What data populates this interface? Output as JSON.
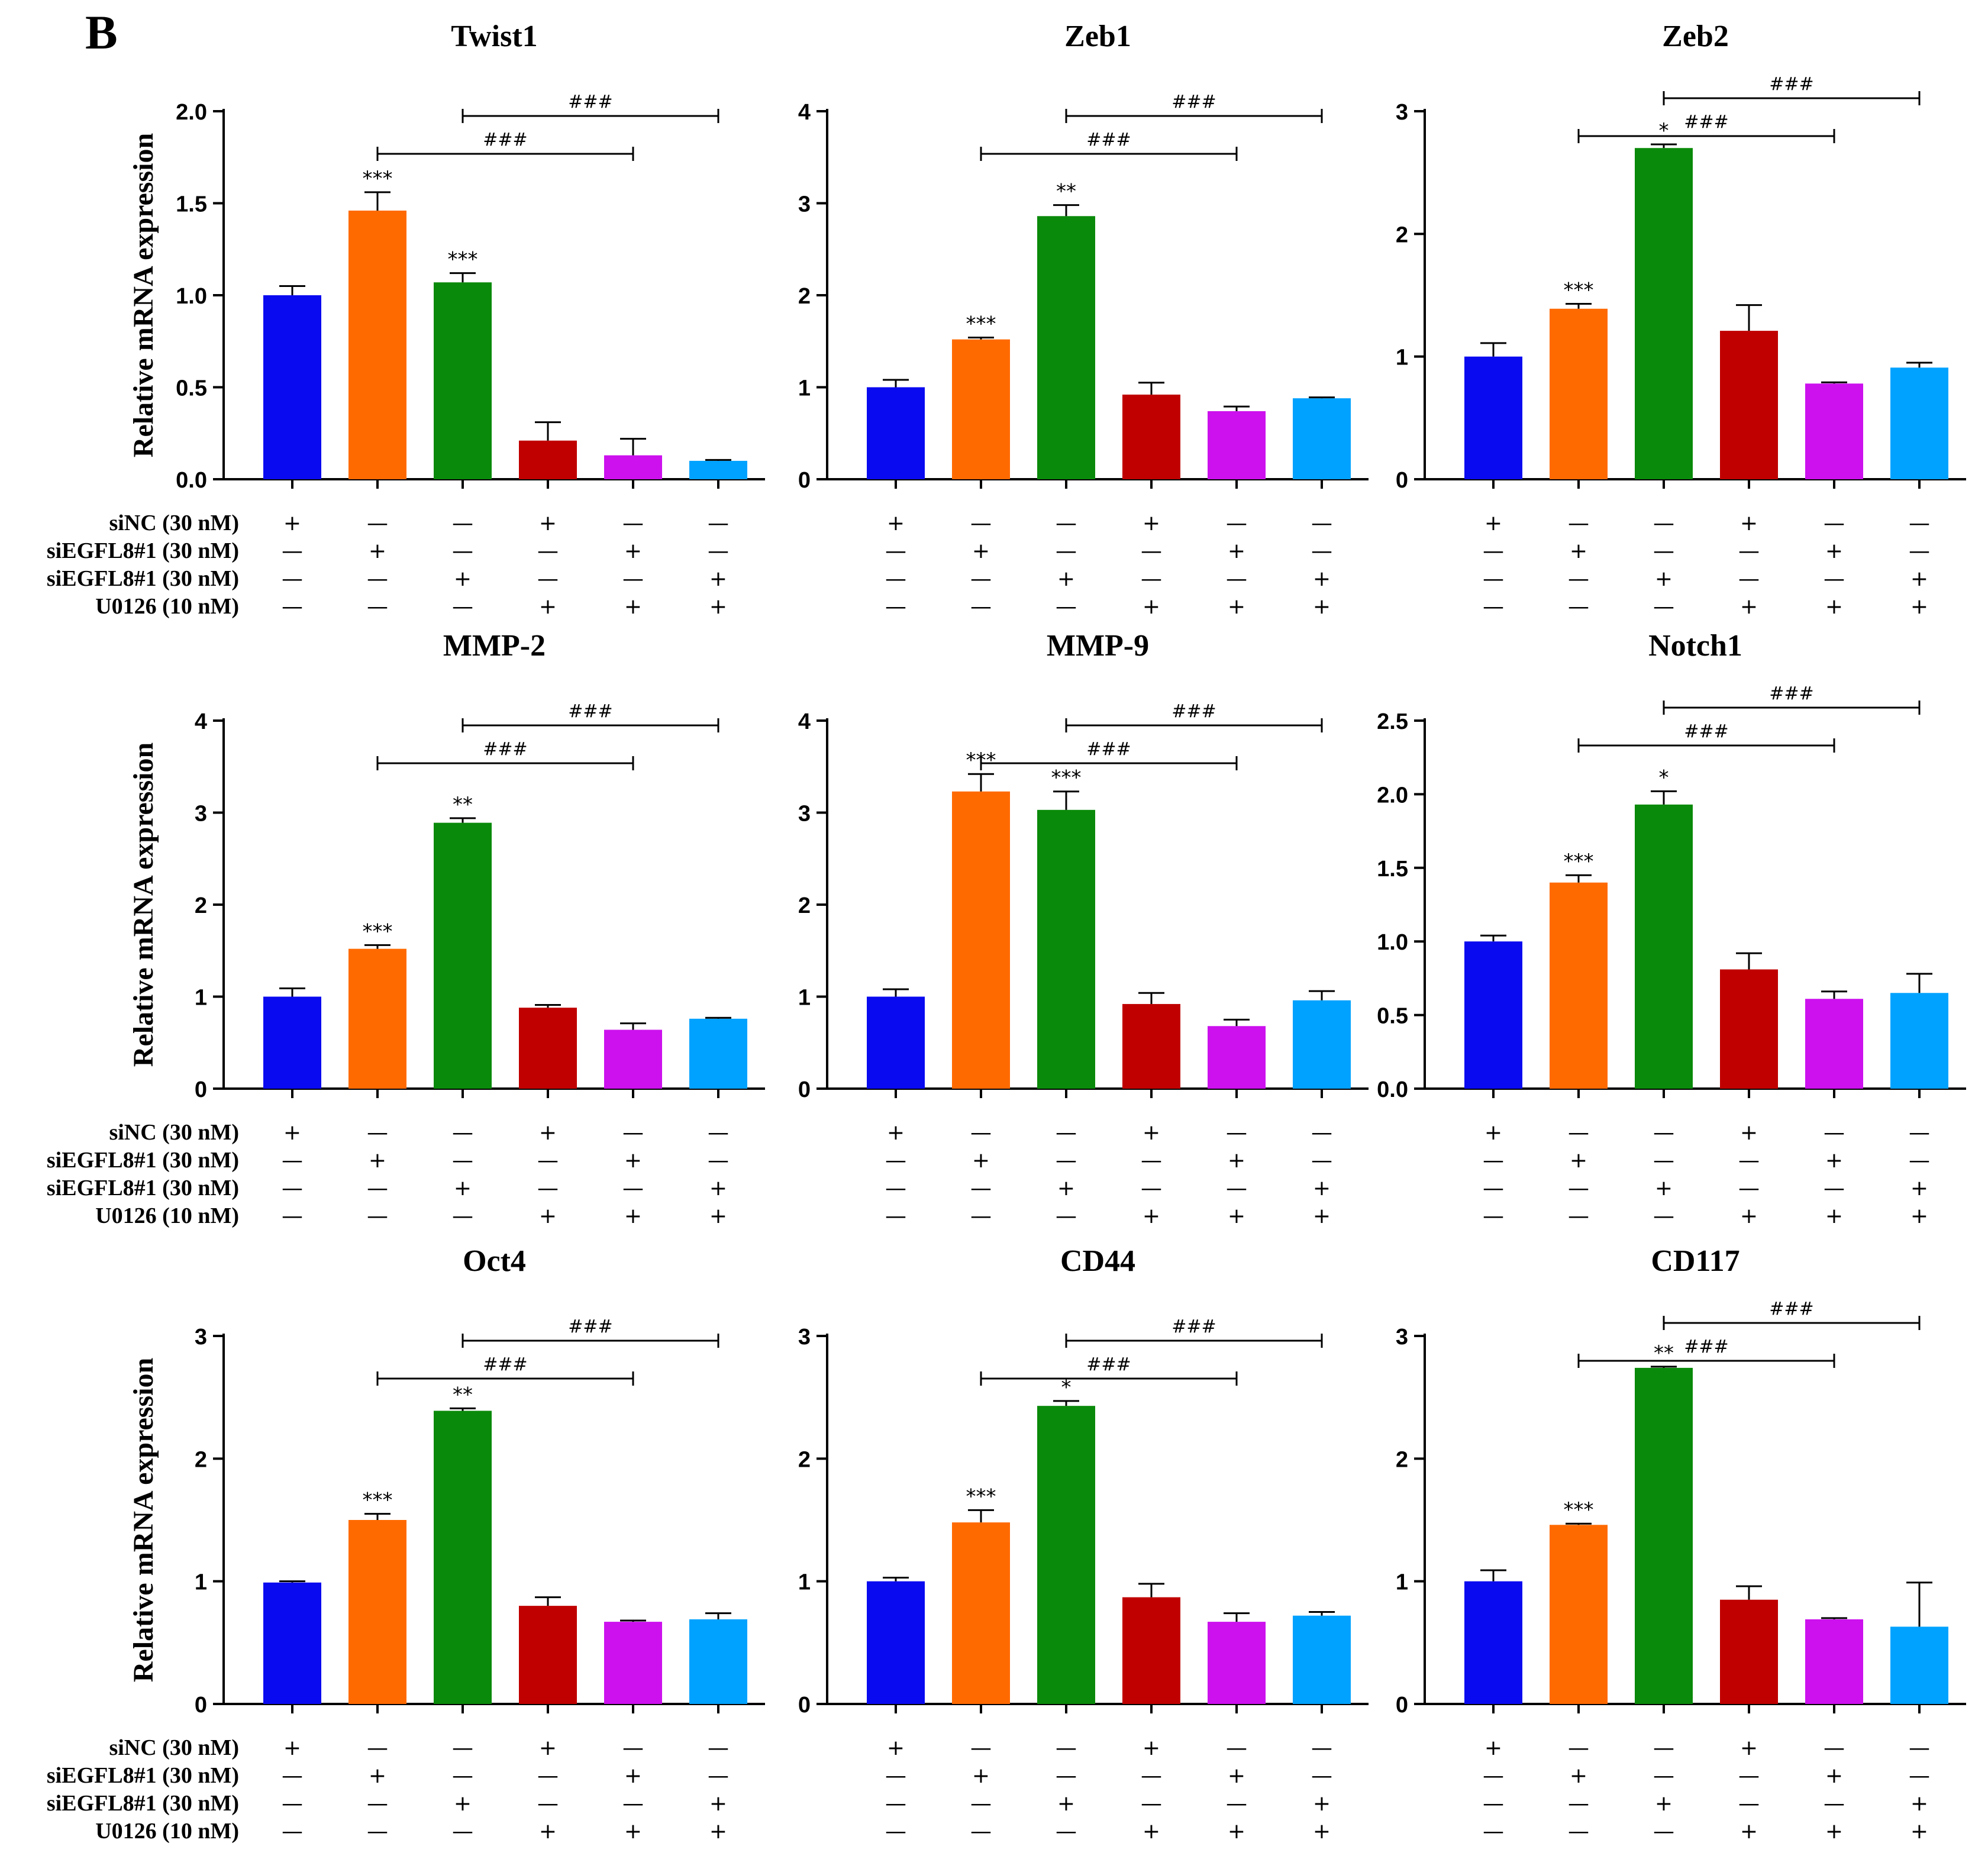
{
  "panel_label": "B",
  "y_axis_label": "Relative mRNA expression",
  "condition_labels": [
    "siNC (30 nM)",
    "siEGFL8#1 (30 nM)",
    "siEGFL8#1 (30 nM)",
    "U0126 (10 nM)"
  ],
  "condition_matrix": [
    [
      "+",
      "—",
      "—",
      "+",
      "—",
      "—"
    ],
    [
      "—",
      "+",
      "—",
      "—",
      "+",
      "—"
    ],
    [
      "—",
      "—",
      "+",
      "—",
      "—",
      "+"
    ],
    [
      "—",
      "—",
      "—",
      "+",
      "+",
      "+"
    ]
  ],
  "colors": {
    "bars": [
      "#0a0af0",
      "#ff6a00",
      "#0a8a0a",
      "#c00000",
      "#cc11ee",
      "#00a2ff"
    ],
    "axis": "#000000",
    "text": "#000000"
  },
  "chart_data": [
    {
      "type": "bar",
      "title": "Twist1",
      "ylabel": "Relative mRNA expression",
      "ylim": [
        0,
        2.0
      ],
      "yticks": [
        "0.0",
        "0.5",
        "1.0",
        "1.5",
        "2.0"
      ],
      "values": [
        1.0,
        1.46,
        1.07,
        0.21,
        0.13,
        0.1
      ],
      "errors": [
        0.05,
        0.1,
        0.05,
        0.1,
        0.09,
        0.005
      ],
      "sig": [
        "",
        "***",
        "***",
        "",
        "",
        ""
      ],
      "brackets": [
        {
          "from": 2,
          "to": 5,
          "label": "###"
        },
        {
          "from": 1,
          "to": 4,
          "label": "###"
        }
      ]
    },
    {
      "type": "bar",
      "title": "Zeb1",
      "ylabel": "",
      "ylim": [
        0,
        4
      ],
      "yticks": [
        "0",
        "1",
        "2",
        "3",
        "4"
      ],
      "values": [
        1.0,
        1.52,
        2.86,
        0.92,
        0.74,
        0.88
      ],
      "errors": [
        0.08,
        0.02,
        0.12,
        0.13,
        0.05,
        0.01
      ],
      "sig": [
        "",
        "***",
        "**",
        "",
        "",
        ""
      ],
      "brackets": [
        {
          "from": 2,
          "to": 5,
          "label": "###"
        },
        {
          "from": 1,
          "to": 4,
          "label": "###"
        }
      ]
    },
    {
      "type": "bar",
      "title": "Zeb2",
      "ylabel": "",
      "ylim": [
        0,
        3
      ],
      "yticks": [
        "0",
        "1",
        "2",
        "3"
      ],
      "values": [
        1.0,
        1.39,
        2.7,
        1.21,
        0.78,
        0.91
      ],
      "errors": [
        0.11,
        0.04,
        0.03,
        0.21,
        0.01,
        0.04
      ],
      "sig": [
        "",
        "***",
        "*",
        "",
        "",
        ""
      ],
      "brackets": [
        {
          "from": 2,
          "to": 5,
          "label": "###"
        },
        {
          "from": 1,
          "to": 4,
          "label": "###"
        }
      ]
    },
    {
      "type": "bar",
      "title": "MMP-2",
      "ylabel": "Relative mRNA expression",
      "ylim": [
        0,
        4
      ],
      "yticks": [
        "0",
        "1",
        "2",
        "3",
        "4"
      ],
      "values": [
        1.0,
        1.52,
        2.89,
        0.88,
        0.64,
        0.76
      ],
      "errors": [
        0.09,
        0.04,
        0.05,
        0.03,
        0.07,
        0.01
      ],
      "sig": [
        "",
        "***",
        "**",
        "",
        "",
        ""
      ],
      "brackets": [
        {
          "from": 2,
          "to": 5,
          "label": "###"
        },
        {
          "from": 1,
          "to": 4,
          "label": "###"
        }
      ]
    },
    {
      "type": "bar",
      "title": "MMP-9",
      "ylabel": "",
      "ylim": [
        0,
        4
      ],
      "yticks": [
        "0",
        "1",
        "2",
        "3",
        "4"
      ],
      "values": [
        1.0,
        3.23,
        3.03,
        0.92,
        0.68,
        0.96
      ],
      "errors": [
        0.08,
        0.19,
        0.2,
        0.12,
        0.07,
        0.1
      ],
      "sig": [
        "",
        "***",
        "***",
        "",
        "",
        ""
      ],
      "brackets": [
        {
          "from": 2,
          "to": 5,
          "label": "###"
        },
        {
          "from": 1,
          "to": 4,
          "label": "###"
        }
      ]
    },
    {
      "type": "bar",
      "title": "Notch1",
      "ylabel": "",
      "ylim": [
        0,
        2.5
      ],
      "yticks": [
        "0.0",
        "0.5",
        "1.0",
        "1.5",
        "2.0",
        "2.5"
      ],
      "values": [
        1.0,
        1.4,
        1.93,
        0.81,
        0.61,
        0.65
      ],
      "errors": [
        0.04,
        0.05,
        0.09,
        0.11,
        0.05,
        0.13
      ],
      "sig": [
        "",
        "***",
        "*",
        "",
        "",
        ""
      ],
      "brackets": [
        {
          "from": 2,
          "to": 5,
          "label": "###"
        },
        {
          "from": 1,
          "to": 4,
          "label": "###"
        }
      ]
    },
    {
      "type": "bar",
      "title": "Oct4",
      "ylabel": "Relative mRNA expression",
      "ylim": [
        0,
        3
      ],
      "yticks": [
        "0",
        "1",
        "2",
        "3"
      ],
      "values": [
        0.99,
        1.5,
        2.39,
        0.8,
        0.67,
        0.69
      ],
      "errors": [
        0.01,
        0.05,
        0.02,
        0.07,
        0.01,
        0.05
      ],
      "sig": [
        "",
        "***",
        "**",
        "",
        "",
        ""
      ],
      "brackets": [
        {
          "from": 2,
          "to": 5,
          "label": "###"
        },
        {
          "from": 1,
          "to": 4,
          "label": "###"
        }
      ]
    },
    {
      "type": "bar",
      "title": "CD44",
      "ylabel": "",
      "ylim": [
        0,
        3
      ],
      "yticks": [
        "0",
        "1",
        "2",
        "3"
      ],
      "values": [
        1.0,
        1.48,
        2.43,
        0.87,
        0.67,
        0.72
      ],
      "errors": [
        0.03,
        0.1,
        0.04,
        0.11,
        0.07,
        0.03
      ],
      "sig": [
        "",
        "***",
        "*",
        "",
        "",
        ""
      ],
      "brackets": [
        {
          "from": 2,
          "to": 5,
          "label": "###"
        },
        {
          "from": 1,
          "to": 4,
          "label": "###"
        }
      ]
    },
    {
      "type": "bar",
      "title": "CD117",
      "ylabel": "",
      "ylim": [
        0,
        3
      ],
      "yticks": [
        "0",
        "1",
        "2",
        "3"
      ],
      "values": [
        1.0,
        1.46,
        2.74,
        0.85,
        0.69,
        0.63
      ],
      "errors": [
        0.09,
        0.01,
        0.01,
        0.11,
        0.01,
        0.36
      ],
      "sig": [
        "",
        "***",
        "**",
        "",
        "",
        ""
      ],
      "brackets": [
        {
          "from": 2,
          "to": 5,
          "label": "###"
        },
        {
          "from": 1,
          "to": 4,
          "label": "###"
        }
      ]
    }
  ]
}
